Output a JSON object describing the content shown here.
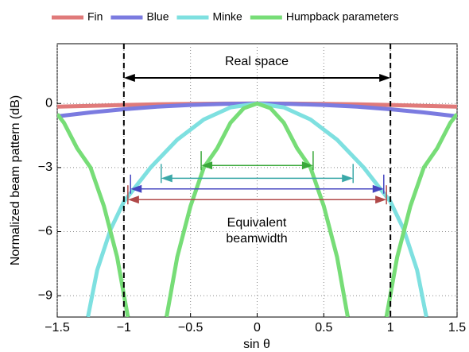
{
  "chart_data": {
    "type": "line",
    "xlabel": "sin θ",
    "ylabel": "Normalized beam pattern (dB)",
    "xlim": [
      -1.5,
      1.5
    ],
    "ylim": [
      -10,
      2.8
    ],
    "xticks": [
      {
        "value": -1.5,
        "label": "−1.5"
      },
      {
        "value": -1,
        "label": "−1"
      },
      {
        "value": -0.5,
        "label": "−0.5"
      },
      0,
      0.5,
      1,
      1.5
    ],
    "yticks": [
      {
        "value": -9,
        "label": "−9"
      },
      {
        "value": -6,
        "label": "−6"
      },
      {
        "value": -3,
        "label": "−3"
      },
      0
    ],
    "grid": true,
    "legend": "top",
    "real_space": {
      "label": "Real space",
      "x": [
        -1,
        1
      ],
      "y": 1.2
    },
    "beamwidth_label": [
      "Equivalent",
      "beamwidth"
    ],
    "series": [
      {
        "name": "Fin",
        "color": "#e07a7a",
        "arrow_color": "#b04848",
        "x": [
          -1.5,
          -1.25,
          -1,
          -0.75,
          -0.5,
          -0.25,
          0,
          0.25,
          0.5,
          0.75,
          1,
          1.25,
          1.5
        ],
        "values": [
          -0.15,
          -0.11,
          -0.07,
          -0.04,
          -0.02,
          -0.005,
          0,
          -0.005,
          -0.02,
          -0.04,
          -0.07,
          -0.11,
          -0.15
        ],
        "beamwidth": [
          -0.97,
          0.97,
          -4.5
        ]
      },
      {
        "name": "Blue",
        "color": "#7b7be0",
        "arrow_color": "#4646c0",
        "x": [
          -1.5,
          -1.25,
          -1,
          -0.75,
          -0.5,
          -0.25,
          0,
          0.25,
          0.5,
          0.75,
          1,
          1.25,
          1.5
        ],
        "values": [
          -0.6,
          -0.42,
          -0.27,
          -0.15,
          -0.07,
          -0.02,
          0,
          -0.02,
          -0.07,
          -0.15,
          -0.27,
          -0.42,
          -0.6
        ],
        "beamwidth": [
          -0.95,
          0.95,
          -4.0
        ]
      },
      {
        "name": "Minke",
        "color": "#7ee0e0",
        "arrow_color": "#3aa8a8",
        "x": [
          -1.27,
          -1.2,
          -1.1,
          -1,
          -0.8,
          -0.6,
          -0.4,
          -0.2,
          0,
          0.2,
          0.4,
          0.6,
          0.8,
          1,
          1.1,
          1.2,
          1.27
        ],
        "values": [
          -10,
          -7.8,
          -5.9,
          -4.6,
          -3,
          -1.7,
          -0.75,
          -0.18,
          0,
          -0.18,
          -0.75,
          -1.7,
          -3,
          -4.6,
          -5.9,
          -7.8,
          -10
        ],
        "beamwidth": [
          -0.72,
          0.72,
          -3.5
        ]
      },
      {
        "name": "Humpback parameters",
        "color": "#77dd77",
        "arrow_color": "#3aa83a",
        "x": [
          -1.5,
          -1.45,
          -1.35,
          -1.25,
          -1.15,
          -1.05,
          -0.97,
          null,
          -0.68,
          -0.6,
          -0.5,
          -0.4,
          -0.3,
          -0.2,
          -0.1,
          0,
          0.1,
          0.2,
          0.3,
          0.4,
          0.5,
          0.6,
          0.68,
          null,
          0.97,
          1.05,
          1.15,
          1.25,
          1.35,
          1.45,
          1.5
        ],
        "values": [
          -0.5,
          -0.9,
          -2.1,
          -3,
          -4.8,
          -7.2,
          -10,
          null,
          -10,
          -7.2,
          -4.8,
          -3,
          -2.1,
          -0.9,
          -0.22,
          0,
          -0.22,
          -0.9,
          -2.1,
          -3,
          -4.8,
          -7.2,
          -10,
          null,
          -10,
          -7.2,
          -4.8,
          -3,
          -2.1,
          -0.9,
          -0.5
        ],
        "beamwidth": [
          -0.42,
          0.42,
          -2.9
        ]
      }
    ]
  }
}
